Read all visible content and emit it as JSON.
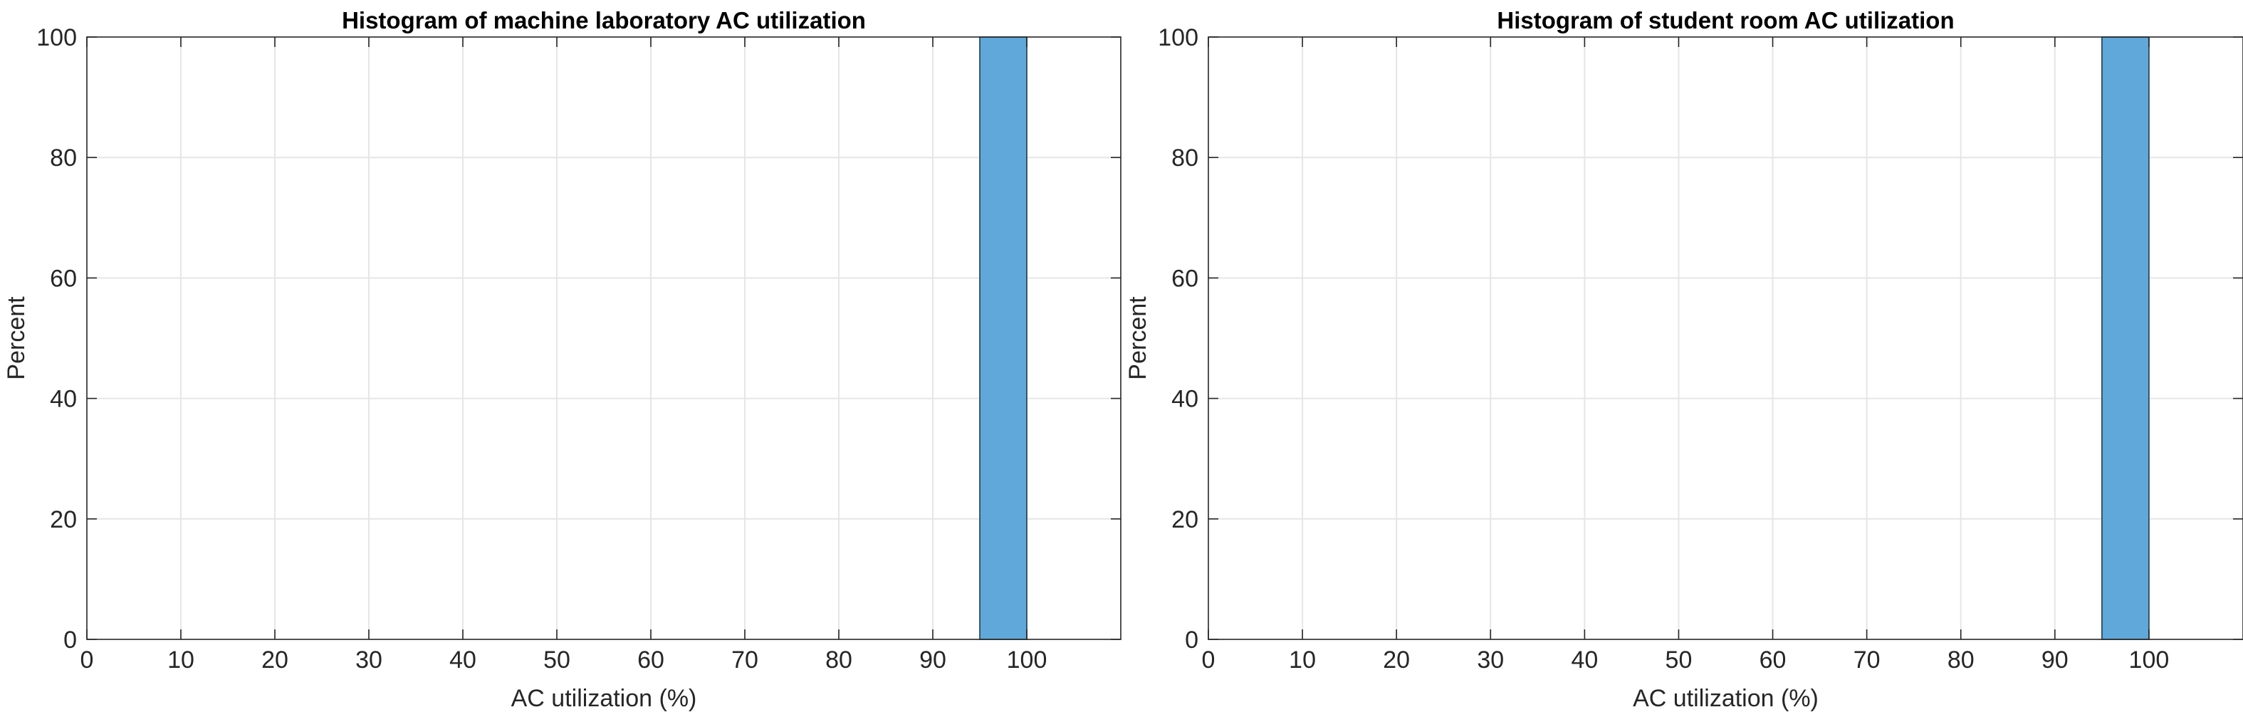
{
  "chart_data": [
    {
      "type": "bar",
      "title": "Histogram of machine laboratory AC utilization",
      "xlabel": "AC utilization (%)",
      "ylabel": "Percent",
      "xlim": [
        0,
        110
      ],
      "ylim": [
        0,
        100
      ],
      "xticks": [
        0,
        10,
        20,
        30,
        40,
        50,
        60,
        70,
        80,
        90,
        100
      ],
      "yticks": [
        0,
        20,
        40,
        60,
        80,
        100
      ],
      "grid": true,
      "bins": [
        {
          "start": 95,
          "end": 100,
          "value": 100
        }
      ],
      "color": "#5fa8d9"
    },
    {
      "type": "bar",
      "title": "Histogram of student room AC utilization",
      "xlabel": "AC utilization (%)",
      "ylabel": "Percent",
      "xlim": [
        0,
        110
      ],
      "ylim": [
        0,
        100
      ],
      "xticks": [
        0,
        10,
        20,
        30,
        40,
        50,
        60,
        70,
        80,
        90,
        100
      ],
      "yticks": [
        0,
        20,
        40,
        60,
        80,
        100
      ],
      "grid": true,
      "bins": [
        {
          "start": 95,
          "end": 100,
          "value": 100
        }
      ],
      "color": "#5fa8d9"
    }
  ]
}
